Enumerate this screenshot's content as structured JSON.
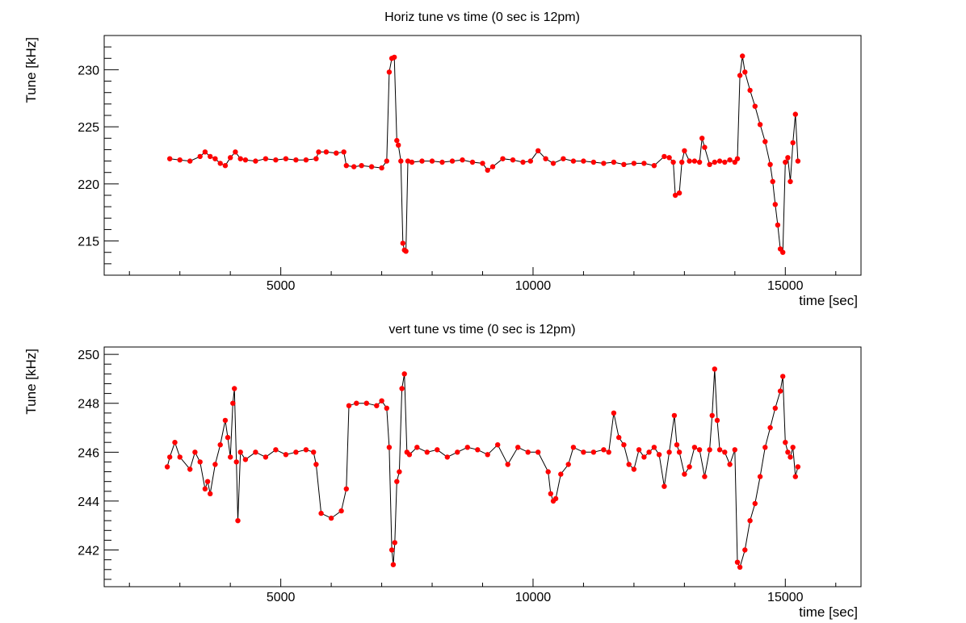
{
  "colors": {
    "marker": "#ff0000",
    "line": "#000000",
    "frame": "#000000",
    "background": "#ffffff"
  },
  "chart_data": [
    {
      "type": "scatter",
      "title": "Horiz tune vs time (0 sec is 12pm)",
      "xlabel": "time [sec]",
      "ylabel": "Tune [kHz]",
      "xlim": [
        1500,
        16500
      ],
      "ylim": [
        212,
        233
      ],
      "xticks": [
        5000,
        10000,
        15000
      ],
      "xtick_labels": [
        "5000",
        "10000",
        "15000"
      ],
      "yticks": [
        215,
        220,
        225,
        230
      ],
      "ytick_labels": [
        "215",
        "220",
        "225",
        "230"
      ],
      "grid": false,
      "legend": "none",
      "series": [
        {
          "marker": "circle",
          "connected": true,
          "x": [
            2800,
            3000,
            3200,
            3400,
            3500,
            3600,
            3700,
            3800,
            3900,
            4000,
            4100,
            4200,
            4300,
            4500,
            4700,
            4900,
            5100,
            5300,
            5500,
            5700,
            5750,
            5900,
            6100,
            6250,
            6300,
            6450,
            6600,
            6800,
            7000,
            7100,
            7150,
            7200,
            7250,
            7300,
            7330,
            7380,
            7420,
            7450,
            7480,
            7520,
            7600,
            7800,
            8000,
            8200,
            8400,
            8600,
            8800,
            9000,
            9100,
            9200,
            9400,
            9600,
            9800,
            9950,
            10100,
            10250,
            10400,
            10600,
            10800,
            11000,
            11200,
            11400,
            11600,
            11800,
            12000,
            12200,
            12400,
            12600,
            12700,
            12780,
            12820,
            12900,
            12950,
            13000,
            13100,
            13200,
            13300,
            13350,
            13400,
            13500,
            13600,
            13700,
            13800,
            13900,
            14000,
            14050,
            14100,
            14150,
            14200,
            14300,
            14400,
            14500,
            14600,
            14700,
            14750,
            14800,
            14850,
            14900,
            14950,
            15000,
            15050,
            15100,
            15150,
            15200,
            15250
          ],
          "y": [
            222.2,
            222.1,
            222.0,
            222.4,
            222.8,
            222.4,
            222.2,
            221.8,
            221.6,
            222.3,
            222.8,
            222.2,
            222.1,
            222.0,
            222.2,
            222.1,
            222.2,
            222.1,
            222.1,
            222.2,
            222.8,
            222.8,
            222.7,
            222.8,
            221.6,
            221.5,
            221.6,
            221.5,
            221.4,
            222.0,
            229.8,
            231.0,
            231.1,
            223.8,
            223.4,
            222.0,
            214.8,
            214.2,
            214.1,
            222.0,
            221.9,
            222.0,
            222.0,
            221.9,
            222.0,
            222.1,
            221.9,
            221.8,
            221.2,
            221.5,
            222.2,
            222.1,
            221.9,
            222.0,
            222.9,
            222.2,
            221.8,
            222.2,
            222.0,
            222.0,
            221.9,
            221.8,
            221.9,
            221.7,
            221.8,
            221.8,
            221.6,
            222.4,
            222.3,
            221.9,
            219.0,
            219.2,
            221.9,
            222.9,
            222.0,
            222.0,
            221.9,
            224.0,
            223.2,
            221.7,
            221.9,
            222.0,
            221.9,
            222.1,
            221.9,
            222.2,
            229.5,
            231.2,
            229.8,
            228.2,
            226.8,
            225.2,
            223.7,
            221.7,
            220.2,
            218.2,
            216.4,
            214.3,
            214.0,
            221.9,
            222.3,
            220.2,
            223.6,
            226.1,
            222.0
          ]
        }
      ]
    },
    {
      "type": "scatter",
      "title": "vert tune vs time (0 sec is 12pm)",
      "xlabel": "time [sec]",
      "ylabel": "Tune [kHz]",
      "xlim": [
        1500,
        16500
      ],
      "ylim": [
        240.5,
        250.3
      ],
      "xticks": [
        5000,
        10000,
        15000
      ],
      "xtick_labels": [
        "5000",
        "10000",
        "15000"
      ],
      "yticks": [
        242,
        244,
        246,
        248,
        250
      ],
      "ytick_labels": [
        "242",
        "244",
        "246",
        "248",
        "250"
      ],
      "grid": false,
      "legend": "none",
      "series": [
        {
          "marker": "circle",
          "connected": true,
          "x": [
            2750,
            2800,
            2900,
            3000,
            3200,
            3300,
            3400,
            3500,
            3550,
            3600,
            3700,
            3800,
            3900,
            3950,
            4000,
            4050,
            4080,
            4120,
            4150,
            4200,
            4300,
            4500,
            4700,
            4900,
            5100,
            5300,
            5500,
            5650,
            5700,
            5800,
            6000,
            6200,
            6300,
            6350,
            6500,
            6700,
            6900,
            7000,
            7100,
            7150,
            7200,
            7230,
            7260,
            7300,
            7350,
            7400,
            7450,
            7500,
            7550,
            7700,
            7900,
            8100,
            8300,
            8500,
            8700,
            8900,
            9100,
            9300,
            9500,
            9700,
            9900,
            10100,
            10300,
            10350,
            10400,
            10450,
            10550,
            10700,
            10800,
            11000,
            11200,
            11400,
            11500,
            11600,
            11700,
            11800,
            11900,
            12000,
            12100,
            12200,
            12300,
            12400,
            12500,
            12600,
            12700,
            12800,
            12850,
            12900,
            13000,
            13100,
            13200,
            13300,
            13400,
            13500,
            13550,
            13600,
            13650,
            13700,
            13800,
            13900,
            14000,
            14050,
            14100,
            14200,
            14300,
            14400,
            14500,
            14600,
            14700,
            14800,
            14900,
            14950,
            15000,
            15050,
            15100,
            15150,
            15200,
            15250
          ],
          "y": [
            245.4,
            245.8,
            246.4,
            245.8,
            245.3,
            246.0,
            245.6,
            244.5,
            244.8,
            244.3,
            245.5,
            246.3,
            247.3,
            246.6,
            245.8,
            248.0,
            248.6,
            245.6,
            243.2,
            246.0,
            245.7,
            246.0,
            245.8,
            246.1,
            245.9,
            246.0,
            246.1,
            246.0,
            245.5,
            243.5,
            243.3,
            243.6,
            244.5,
            247.9,
            248.0,
            248.0,
            247.9,
            248.1,
            247.8,
            246.2,
            242.0,
            241.4,
            242.3,
            244.8,
            245.2,
            248.6,
            249.2,
            246.0,
            245.9,
            246.2,
            246.0,
            246.1,
            245.8,
            246.0,
            246.2,
            246.1,
            245.9,
            246.3,
            245.5,
            246.2,
            246.0,
            246.0,
            245.2,
            244.3,
            244.0,
            244.1,
            245.1,
            245.5,
            246.2,
            246.0,
            246.0,
            246.1,
            246.0,
            247.6,
            246.6,
            246.3,
            245.5,
            245.3,
            246.1,
            245.8,
            246.0,
            246.2,
            245.9,
            244.6,
            246.0,
            247.5,
            246.3,
            246.0,
            245.1,
            245.4,
            246.2,
            246.1,
            245.0,
            246.1,
            247.5,
            249.4,
            247.3,
            246.1,
            246.0,
            245.5,
            246.1,
            241.5,
            241.3,
            242.0,
            243.2,
            243.9,
            245.0,
            246.2,
            247.0,
            247.8,
            248.5,
            249.1,
            246.4,
            246.0,
            245.8,
            246.2,
            245.0,
            245.4
          ]
        }
      ]
    }
  ]
}
